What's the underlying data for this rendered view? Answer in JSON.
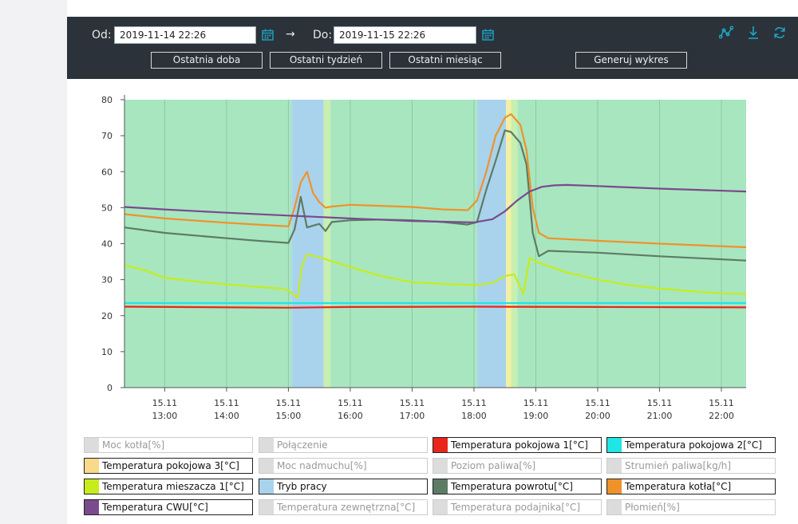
{
  "toolbar": {
    "from_label": "Od:",
    "from_value": "2019-11-14 22:26",
    "arrow": "→",
    "to_label": "Do:",
    "to_value": "2019-11-15 22:26",
    "buttons": [
      "Ostatnia doba",
      "Ostatni tydzień",
      "Ostatni miesiąc",
      "Generuj wykres"
    ],
    "icons": [
      "chart-line-icon",
      "download-icon",
      "refresh-icon"
    ],
    "accent": "#1fa3c4"
  },
  "chart_data": {
    "type": "line",
    "title": "",
    "xlabel": "",
    "ylabel": "",
    "ylim": [
      0,
      80
    ],
    "yticks": [
      0,
      10,
      20,
      30,
      40,
      50,
      60,
      70,
      80
    ],
    "xlim": [
      12.35,
      22.4
    ],
    "xtick_values": [
      13,
      14,
      15,
      16,
      17,
      18,
      19,
      20,
      21,
      22
    ],
    "xtick_labels": [
      [
        "15.11",
        "13:00"
      ],
      [
        "15.11",
        "14:00"
      ],
      [
        "15.11",
        "15:00"
      ],
      [
        "15.11",
        "16:00"
      ],
      [
        "15.11",
        "17:00"
      ],
      [
        "15.11",
        "18:00"
      ],
      [
        "15.11",
        "19:00"
      ],
      [
        "15.11",
        "20:00"
      ],
      [
        "15.11",
        "21:00"
      ],
      [
        "15.11",
        "22:00"
      ]
    ],
    "grid": true,
    "legend_position": "bottom",
    "bands": [
      {
        "x0": 12.35,
        "x1": 15.05,
        "color": "#a8e6c0"
      },
      {
        "x0": 15.05,
        "x1": 15.57,
        "color": "#a9d3ec"
      },
      {
        "x0": 15.57,
        "x1": 15.68,
        "color": "#c9efb0"
      },
      {
        "x0": 15.68,
        "x1": 18.05,
        "color": "#a8e6c0"
      },
      {
        "x0": 18.05,
        "x1": 18.52,
        "color": "#a9d3ec"
      },
      {
        "x0": 18.52,
        "x1": 18.6,
        "color": "#f3f0a0"
      },
      {
        "x0": 18.6,
        "x1": 18.7,
        "color": "#c9efb0"
      },
      {
        "x0": 18.7,
        "x1": 22.4,
        "color": "#a8e6c0"
      }
    ],
    "series": [
      {
        "name": "Temperatura pokojowa 2[°C]",
        "color": "#1fe5e5",
        "x": [
          12.35,
          22.4
        ],
        "y": [
          23.5,
          23.5
        ]
      },
      {
        "name": "Temperatura pokojowa 1[°C]",
        "color": "#e8261c",
        "x": [
          12.35,
          15.0,
          16.0,
          18.0,
          20.0,
          22.4
        ],
        "y": [
          22.5,
          22.2,
          22.4,
          22.5,
          22.4,
          22.3
        ]
      },
      {
        "name": "Temperatura mieszacza 1[°C]",
        "color": "#c6ec1c",
        "x": [
          12.35,
          12.7,
          13.0,
          13.5,
          14.0,
          14.5,
          14.9,
          15.0,
          15.15,
          15.22,
          15.3,
          15.5,
          16.0,
          16.5,
          17.0,
          17.5,
          18.0,
          18.3,
          18.5,
          18.65,
          18.8,
          18.9,
          19.0,
          19.5,
          20.0,
          20.5,
          21.0,
          21.5,
          22.0,
          22.4
        ],
        "y": [
          34,
          32.5,
          30.5,
          29.5,
          28.7,
          28,
          27.5,
          27,
          25,
          34,
          37,
          36.2,
          33.5,
          31,
          29.3,
          28.8,
          28.5,
          29,
          31,
          31.5,
          26,
          36,
          35,
          32,
          30,
          28.5,
          27.5,
          26.8,
          26.2,
          26
        ]
      },
      {
        "name": "Temperatura powrotu[°C]",
        "color": "#5e7b65",
        "x": [
          12.35,
          13.0,
          14.0,
          14.5,
          15.0,
          15.1,
          15.2,
          15.3,
          15.4,
          15.5,
          15.6,
          15.7,
          16.0,
          16.5,
          17.0,
          17.5,
          17.9,
          18.05,
          18.2,
          18.35,
          18.5,
          18.6,
          18.75,
          18.85,
          18.95,
          19.05,
          19.2,
          20.0,
          21.0,
          22.4
        ],
        "y": [
          44.5,
          43,
          41.5,
          40.8,
          40.2,
          44,
          53,
          44.5,
          45,
          45.5,
          43.5,
          46,
          46.5,
          46.7,
          46.5,
          46,
          45.3,
          46,
          55,
          63,
          71.5,
          71,
          68,
          62,
          43,
          36.5,
          38,
          37.5,
          36.5,
          35.3
        ]
      },
      {
        "name": "Temperatura kotła[°C]",
        "color": "#ef922a",
        "x": [
          12.35,
          13.0,
          14.0,
          14.5,
          15.0,
          15.1,
          15.2,
          15.3,
          15.4,
          15.5,
          15.6,
          15.7,
          16.0,
          16.5,
          17.0,
          17.5,
          17.9,
          18.05,
          18.2,
          18.35,
          18.5,
          18.6,
          18.75,
          18.85,
          18.95,
          19.05,
          19.2,
          20.0,
          21.0,
          22.4
        ],
        "y": [
          48.2,
          47,
          45.8,
          45.3,
          44.8,
          50,
          57,
          60,
          54,
          51.5,
          50,
          50.3,
          50.8,
          50.5,
          50.2,
          49.5,
          49.3,
          52,
          60,
          70,
          75,
          76,
          73,
          66,
          50,
          43,
          41.5,
          40.8,
          40,
          39
        ]
      },
      {
        "name": "Temperatura CWU[°C]",
        "color": "#7a4a8c",
        "x": [
          12.35,
          13.0,
          14.0,
          15.0,
          16.0,
          17.0,
          18.0,
          18.3,
          18.5,
          18.7,
          18.9,
          19.1,
          19.3,
          19.5,
          20.0,
          21.0,
          22.4
        ],
        "y": [
          50.2,
          49.5,
          48.6,
          47.8,
          47,
          46.3,
          45.9,
          46.8,
          49,
          52,
          54.5,
          55.8,
          56.2,
          56.3,
          56,
          55.3,
          54.5
        ]
      }
    ]
  },
  "legend": [
    {
      "label": "Moc kotła[%]",
      "color": "#dcdcdc",
      "on": false
    },
    {
      "label": "Połączenie",
      "color": "#dcdcdc",
      "on": false
    },
    {
      "label": "Temperatura pokojowa 1[°C]",
      "color": "#e8261c",
      "on": true
    },
    {
      "label": "Temperatura pokojowa 2[°C]",
      "color": "#1fe5e5",
      "on": true
    },
    {
      "label": "Temperatura pokojowa 3[°C]",
      "color": "#f9d98a",
      "on": true
    },
    {
      "label": "Moc nadmuchu[%]",
      "color": "#dcdcdc",
      "on": false
    },
    {
      "label": "Poziom paliwa[%]",
      "color": "#dcdcdc",
      "on": false
    },
    {
      "label": "Strumień paliwa[kg/h]",
      "color": "#dcdcdc",
      "on": false
    },
    {
      "label": "Temperatura mieszacza 1[°C]",
      "color": "#c6ec1c",
      "on": true
    },
    {
      "label": "Tryb pracy",
      "color": "#a9d3ec",
      "on": true
    },
    {
      "label": "Temperatura powrotu[°C]",
      "color": "#5e7b65",
      "on": true
    },
    {
      "label": "Temperatura kotła[°C]",
      "color": "#ef922a",
      "on": true
    },
    {
      "label": "Temperatura CWU[°C]",
      "color": "#7a4a8c",
      "on": true
    },
    {
      "label": "Temperatura zewnętrzna[°C]",
      "color": "#dcdcdc",
      "on": false
    },
    {
      "label": "Temperatura podajnika[°C]",
      "color": "#dcdcdc",
      "on": false
    },
    {
      "label": "Płomień[%]",
      "color": "#dcdcdc",
      "on": false
    }
  ]
}
